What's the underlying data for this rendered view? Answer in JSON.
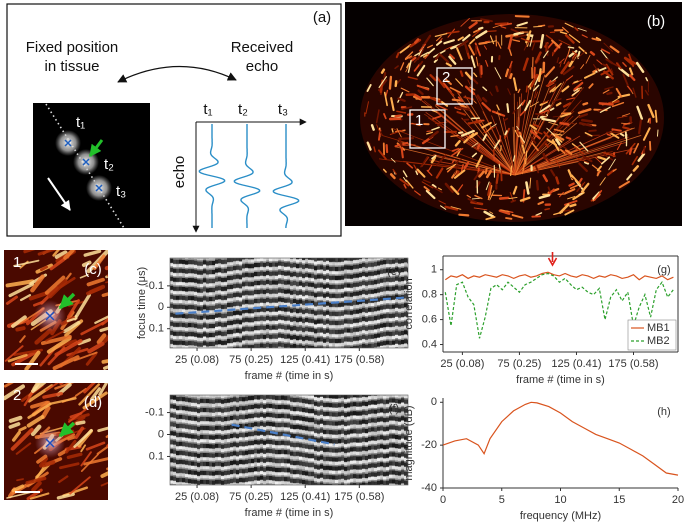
{
  "panel_a": {
    "label": "(a)",
    "left_text": [
      "Fixed position",
      "in tissue"
    ],
    "right_text": [
      "Received",
      "echo"
    ],
    "times": [
      "t₁",
      "t₂",
      "t₃"
    ],
    "axis_label": "echo"
  },
  "panel_b": {
    "label": "(b)",
    "regions": [
      "1",
      "2"
    ]
  },
  "panel_c": {
    "label": "(c)",
    "region": "1"
  },
  "panel_d": {
    "label": "(d)",
    "region": "2"
  },
  "chart_data": [
    {
      "type": "image",
      "label": "(e)",
      "xlabel": "frame # (time in s)",
      "ylabel": "focus time (μs)",
      "xlim": [
        0,
        220
      ],
      "ylim": [
        -0.23,
        0.19
      ],
      "y_reversed": true,
      "xticks": [
        {
          "value": 25,
          "label": "25 (0.08)"
        },
        {
          "value": 75,
          "label": "75 (0.25)"
        },
        {
          "value": 125,
          "label": "125 (0.41)"
        },
        {
          "value": 175,
          "label": "175 (0.58)"
        }
      ],
      "yticks": [
        -0.1,
        0,
        0.1
      ],
      "x": [
        5,
        217
      ],
      "values": [
        0.03,
        -0.045
      ],
      "color": "#4a7fc8",
      "drift": "up"
    },
    {
      "type": "image",
      "label": "(f)",
      "xlabel": "frame # (time in s)",
      "xlim": [
        0,
        220
      ],
      "ylim": [
        -0.18,
        0.23
      ],
      "y_reversed": true,
      "xticks": [
        {
          "value": 25,
          "label": "25 (0.08)"
        },
        {
          "value": 75,
          "label": "75 (0.25)"
        },
        {
          "value": 125,
          "label": "125 (0.41)"
        },
        {
          "value": 175,
          "label": "175 (0.58)"
        }
      ],
      "yticks": [
        -0.1,
        0,
        0.1
      ],
      "x": [
        57,
        152
      ],
      "values": [
        -0.045,
        0.045
      ],
      "color": "#4a7fc8",
      "drift": "down"
    },
    {
      "type": "line",
      "label": "(g)",
      "xlabel": "frame # (time in s)",
      "ylabel": "correlation",
      "xlim": [
        8,
        214
      ],
      "ylim": [
        0.34,
        1.11
      ],
      "box": true,
      "xticks": [
        {
          "value": 25,
          "label": "25 (0.08)"
        },
        {
          "value": 75,
          "label": "75 (0.25)"
        },
        {
          "value": 125,
          "label": "125 (0.41)"
        },
        {
          "value": 175,
          "label": "175 (0.58)"
        }
      ],
      "yticks": [
        0.4,
        0.6,
        0.8,
        1
      ],
      "legend": "lower right",
      "arrow_x": 104,
      "arrow_color": "#e0201a",
      "x": [
        10,
        15,
        20,
        25,
        30,
        35,
        40,
        45,
        50,
        55,
        60,
        65,
        70,
        75,
        80,
        85,
        90,
        95,
        100,
        105,
        110,
        115,
        120,
        125,
        130,
        135,
        140,
        145,
        150,
        155,
        160,
        165,
        170,
        175,
        180,
        185,
        190,
        195,
        200,
        205,
        210
      ],
      "series": [
        {
          "name": "MB1",
          "color": "#d9541e",
          "style": "solid",
          "values": [
            0.92,
            0.95,
            0.94,
            0.96,
            0.93,
            0.95,
            0.94,
            0.96,
            0.95,
            0.94,
            0.96,
            0.95,
            0.93,
            0.95,
            0.96,
            0.94,
            0.95,
            0.97,
            0.98,
            0.96,
            0.95,
            0.97,
            0.95,
            0.94,
            0.96,
            0.95,
            0.93,
            0.95,
            0.94,
            0.96,
            0.95,
            0.93,
            0.94,
            0.96,
            0.92,
            0.95,
            0.94,
            0.93,
            0.95,
            0.92,
            0.94
          ]
        },
        {
          "name": "MB2",
          "color": "#2ca02c",
          "style": "dashed",
          "values": [
            0.82,
            0.55,
            0.88,
            0.9,
            0.78,
            0.72,
            0.45,
            0.62,
            0.85,
            0.88,
            0.84,
            0.9,
            0.86,
            0.82,
            0.88,
            0.9,
            0.93,
            0.96,
            0.97,
            0.95,
            0.9,
            0.93,
            0.88,
            0.84,
            0.86,
            0.82,
            0.8,
            0.85,
            0.6,
            0.78,
            0.84,
            0.75,
            0.82,
            0.55,
            0.7,
            0.8,
            0.62,
            0.84,
            0.9,
            0.78,
            0.84
          ]
        }
      ]
    },
    {
      "type": "line",
      "label": "(h)",
      "xlabel": "frequency (MHz)",
      "ylabel": "magnitude (dB)",
      "xlim": [
        0,
        20
      ],
      "ylim": [
        -40,
        2
      ],
      "box": false,
      "xticks": [
        0,
        5,
        10,
        15,
        20
      ],
      "yticks": [
        -40,
        -20,
        0
      ],
      "x": [
        0,
        1,
        2,
        3,
        3.5,
        4,
        5,
        6,
        7,
        7.5,
        8,
        9,
        10,
        11,
        12,
        13,
        14,
        15,
        16,
        17,
        18,
        19,
        20
      ],
      "series": [
        {
          "color": "#d9541e",
          "style": "solid",
          "values": [
            -20,
            -18,
            -17,
            -20,
            -24,
            -17,
            -9,
            -4,
            -1,
            0,
            -0.3,
            -2,
            -5,
            -9,
            -12,
            -15,
            -17,
            -19,
            -22,
            -25,
            -29,
            -33,
            -34
          ]
        }
      ]
    }
  ]
}
